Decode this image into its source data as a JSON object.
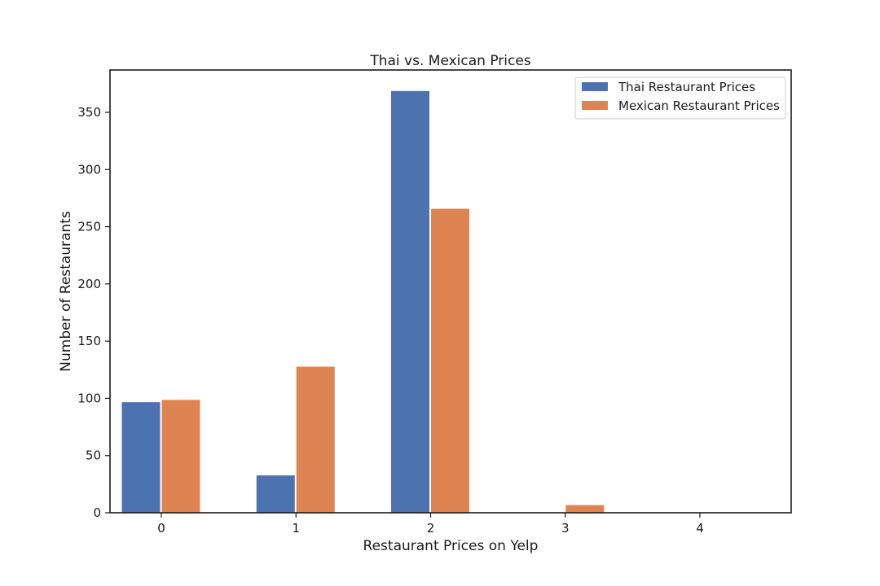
{
  "chart_data": {
    "type": "bar",
    "title": "Thai vs. Mexican Prices",
    "xlabel": "Restaurant Prices on Yelp",
    "ylabel": "Number of Restaurants",
    "categories": [
      "0",
      "1",
      "2",
      "3",
      "4"
    ],
    "series": [
      {
        "name": "Thai Restaurant Prices",
        "color": "#4c72b0",
        "values": [
          97,
          33,
          369,
          0,
          0
        ]
      },
      {
        "name": "Mexican Restaurant Prices",
        "color": "#dd8452",
        "values": [
          99,
          128,
          266,
          7,
          0
        ]
      }
    ],
    "ylim": [
      0,
      387
    ],
    "yticks": [
      0,
      50,
      100,
      150,
      200,
      250,
      300,
      350
    ],
    "grid": false,
    "legend": "top-right"
  }
}
